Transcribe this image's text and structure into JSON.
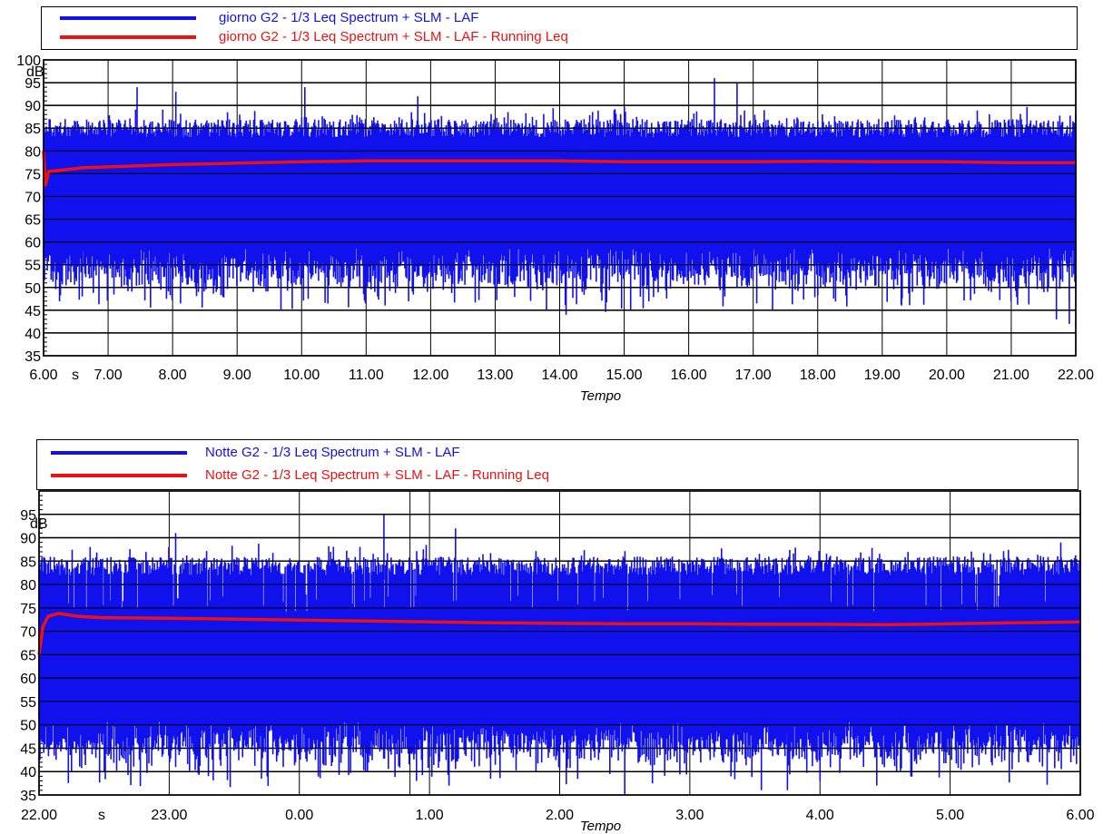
{
  "chart_data": [
    {
      "type": "line",
      "legend": [
        {
          "label": "giorno G2 - 1/3 Leq Spectrum + SLM - LAF",
          "color": "#1111ee"
        },
        {
          "label": "giorno G2 - 1/3 Leq Spectrum + SLM - LAF - Running Leq",
          "color": "#ee1111"
        }
      ],
      "y_unit": "dB",
      "xlabel": "Tempo",
      "x_unit": "s",
      "ylim": [
        35,
        100
      ],
      "y_ticks": [
        35,
        40,
        45,
        50,
        55,
        60,
        65,
        70,
        75,
        80,
        85,
        90,
        95,
        100
      ],
      "x_ticks": [
        "6.00",
        "7.00",
        "8.00",
        "9.00",
        "10.00",
        "11.00",
        "12.00",
        "13.00",
        "14.00",
        "15.00",
        "16.00",
        "17.00",
        "18.00",
        "19.00",
        "20.00",
        "21.00",
        "22.00"
      ],
      "x_range_hours": [
        6,
        22
      ],
      "series": [
        {
          "name": "giorno G2 - 1/3 Leq Spectrum + SLM - LAF",
          "kind": "band",
          "band_upper_typical": 87,
          "band_lower_typical": 55,
          "peaks_high": [
            [
              7.45,
              94
            ],
            [
              8.05,
              93
            ],
            [
              10.05,
              94
            ],
            [
              16.4,
              96
            ],
            [
              16.75,
              95
            ],
            [
              11.8,
              92
            ],
            [
              22.0,
              88
            ]
          ],
          "peaks_low": [
            [
              6.6,
              48
            ],
            [
              8.4,
              49
            ],
            [
              9.25,
              49
            ],
            [
              14.1,
              44
            ],
            [
              15.1,
              45
            ],
            [
              17.3,
              45
            ],
            [
              21.7,
              43
            ],
            [
              21.9,
              42
            ],
            [
              19.3,
              46
            ]
          ]
        },
        {
          "name": "giorno G2 - 1/3 Leq Spectrum + SLM - LAF - Running Leq",
          "kind": "line",
          "points": [
            [
              6.0,
              80
            ],
            [
              6.03,
              72.5
            ],
            [
              6.08,
              75.5
            ],
            [
              6.3,
              75.8
            ],
            [
              6.6,
              76.3
            ],
            [
              7.0,
              76.5
            ],
            [
              8.0,
              77
            ],
            [
              9.0,
              77.3
            ],
            [
              10.0,
              77.6
            ],
            [
              11.0,
              77.8
            ],
            [
              12.0,
              77.8
            ],
            [
              13.0,
              77.8
            ],
            [
              14.0,
              77.8
            ],
            [
              15.0,
              77.6
            ],
            [
              16.0,
              77.6
            ],
            [
              17.0,
              77.6
            ],
            [
              18.0,
              77.7
            ],
            [
              19.0,
              77.6
            ],
            [
              20.0,
              77.6
            ],
            [
              21.0,
              77.4
            ],
            [
              22.0,
              77.4
            ]
          ]
        }
      ]
    },
    {
      "type": "line",
      "legend": [
        {
          "label": "Notte G2 - 1/3 Leq Spectrum + SLM - LAF",
          "color": "#1111ee"
        },
        {
          "label": "Notte G2 - 1/3 Leq Spectrum + SLM - LAF - Running Leq",
          "color": "#ee1111"
        }
      ],
      "y_unit": "dB",
      "xlabel": "Tempo",
      "x_unit": "s",
      "ylim": [
        35,
        100
      ],
      "y_ticks": [
        35,
        40,
        45,
        50,
        55,
        60,
        65,
        70,
        75,
        80,
        85,
        90,
        95
      ],
      "x_ticks": [
        "22.00",
        "23.00",
        "0.00",
        "1.00",
        "2.00",
        "3.00",
        "4.00",
        "5.00",
        "6.00"
      ],
      "x_range_hours": [
        22,
        30
      ],
      "series": [
        {
          "name": "Notte G2 - 1/3 Leq Spectrum + SLM - LAF",
          "kind": "band",
          "band_upper_typical": 86,
          "band_lower_typical": 47,
          "peaks_high": [
            [
              23.05,
              91
            ],
            [
              24.65,
              95
            ],
            [
              25.2,
              92
            ],
            [
              29.85,
              89
            ]
          ],
          "peaks_low": [
            [
              22.25,
              40
            ],
            [
              23.05,
              41
            ],
            [
              24.9,
              38
            ],
            [
              25.15,
              37
            ],
            [
              26.5,
              35
            ],
            [
              27.55,
              36
            ],
            [
              27.75,
              36
            ],
            [
              28.0,
              38
            ]
          ]
        },
        {
          "name": "Notte G2 - 1/3 Leq Spectrum + SLM - LAF - Running Leq",
          "kind": "line",
          "points": [
            [
              22.0,
              65
            ],
            [
              22.03,
              71
            ],
            [
              22.07,
              73.2
            ],
            [
              22.15,
              73.8
            ],
            [
              22.3,
              73.2
            ],
            [
              22.5,
              72.9
            ],
            [
              23.0,
              72.8
            ],
            [
              23.5,
              72.6
            ],
            [
              24.0,
              72.4
            ],
            [
              24.5,
              72.2
            ],
            [
              25.0,
              72.0
            ],
            [
              25.5,
              71.8
            ],
            [
              26.0,
              71.7
            ],
            [
              26.5,
              71.6
            ],
            [
              27.0,
              71.6
            ],
            [
              27.5,
              71.5
            ],
            [
              28.0,
              71.5
            ],
            [
              28.5,
              71.4
            ],
            [
              29.0,
              71.6
            ],
            [
              29.5,
              71.8
            ],
            [
              30.0,
              72.0
            ]
          ]
        }
      ]
    }
  ]
}
